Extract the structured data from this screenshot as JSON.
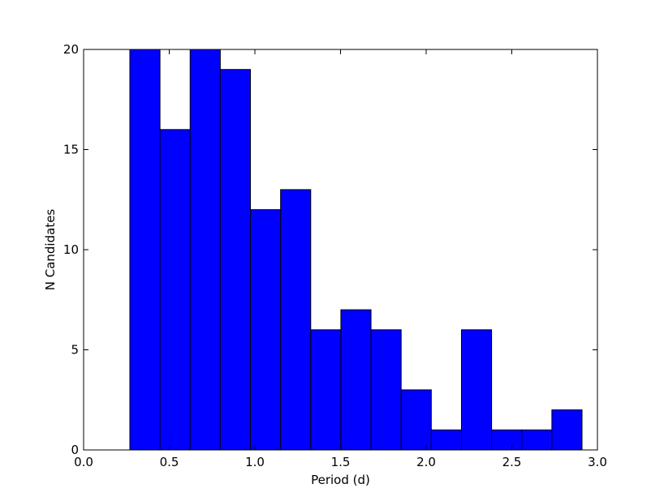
{
  "chart_data": {
    "type": "bar",
    "title": "",
    "xlabel": "Period (d)",
    "ylabel": "N Candidates",
    "xlim": [
      0.0,
      3.0
    ],
    "ylim": [
      0,
      20
    ],
    "x_ticks": [
      "0.0",
      "0.5",
      "1.0",
      "1.5",
      "2.0",
      "2.5",
      "3.0"
    ],
    "y_ticks": [
      "0",
      "5",
      "10",
      "15",
      "20"
    ],
    "bin_edges": [
      0.27,
      0.446,
      0.622,
      0.798,
      0.974,
      1.15,
      1.326,
      1.502,
      1.678,
      1.854,
      2.03,
      2.206,
      2.382,
      2.558,
      2.734,
      2.91
    ],
    "values": [
      20,
      16,
      20,
      19,
      12,
      13,
      6,
      7,
      6,
      3,
      1,
      6,
      1,
      1,
      2
    ],
    "grid": false,
    "bar_color": "#0000ff",
    "edge_color": "#000000"
  }
}
